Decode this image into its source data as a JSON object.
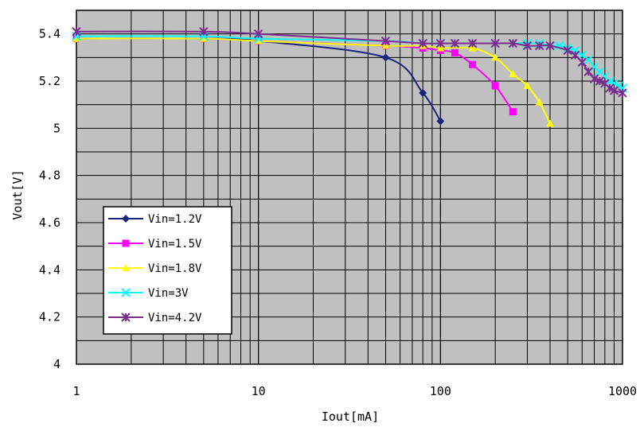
{
  "chart_data": {
    "type": "line",
    "xlabel": "Iout[mA]",
    "ylabel": "Vout[V]",
    "xscale": "log",
    "xlim": [
      1,
      1000
    ],
    "ylim": [
      4,
      5.5
    ],
    "x_ticks": [
      1,
      10,
      100,
      1000
    ],
    "x_tick_labels": [
      "1",
      "10",
      "100",
      "1000"
    ],
    "y_ticks": [
      4,
      4.2,
      4.4,
      4.6,
      4.8,
      5,
      5.2,
      5.4
    ],
    "y_tick_labels": [
      "4",
      "4.2",
      "4.4",
      "4.6",
      "4.8",
      "5",
      "5.2",
      "5.4"
    ],
    "grid": true,
    "plot_background": "#c0c0c0",
    "legend_position": "lower-left",
    "series": [
      {
        "name": "Vin=1.2V",
        "color": "#1a237e",
        "marker": "diamond",
        "x": [
          1,
          5,
          10,
          50,
          80,
          100
        ],
        "y": [
          5.38,
          5.38,
          5.37,
          5.3,
          5.15,
          5.03
        ]
      },
      {
        "name": "Vin=1.5V",
        "color": "#ff00ff",
        "marker": "square",
        "x": [
          1,
          5,
          10,
          50,
          80,
          100,
          120,
          150,
          200,
          250
        ],
        "y": [
          5.38,
          5.38,
          5.37,
          5.35,
          5.34,
          5.33,
          5.32,
          5.27,
          5.18,
          5.07
        ]
      },
      {
        "name": "Vin=1.8V",
        "color": "#ffff00",
        "marker": "triangle",
        "x": [
          1,
          5,
          10,
          50,
          80,
          100,
          150,
          200,
          250,
          300,
          350,
          400
        ],
        "y": [
          5.38,
          5.38,
          5.37,
          5.35,
          5.35,
          5.34,
          5.34,
          5.3,
          5.23,
          5.18,
          5.11,
          5.02
        ]
      },
      {
        "name": "Vin=3V",
        "color": "#00ffff",
        "marker": "x",
        "x": [
          1,
          5,
          10,
          50,
          80,
          100,
          120,
          150,
          200,
          250,
          300,
          350,
          400,
          450,
          500,
          550,
          600,
          650,
          700,
          750,
          800,
          850,
          900,
          950,
          1000
        ],
        "y": [
          5.39,
          5.39,
          5.38,
          5.37,
          5.36,
          5.36,
          5.36,
          5.36,
          5.36,
          5.36,
          5.36,
          5.36,
          5.35,
          5.35,
          5.34,
          5.33,
          5.31,
          5.29,
          5.26,
          5.24,
          5.22,
          5.2,
          5.19,
          5.18,
          5.17
        ]
      },
      {
        "name": "Vin=4.2V",
        "color": "#7b2d8e",
        "marker": "asterisk",
        "x": [
          1,
          5,
          10,
          50,
          80,
          100,
          120,
          150,
          200,
          250,
          300,
          350,
          400,
          500,
          550,
          600,
          650,
          700,
          750,
          800,
          850,
          900,
          1000
        ],
        "y": [
          5.41,
          5.41,
          5.4,
          5.37,
          5.36,
          5.36,
          5.36,
          5.36,
          5.36,
          5.36,
          5.35,
          5.35,
          5.35,
          5.33,
          5.31,
          5.28,
          5.24,
          5.21,
          5.2,
          5.19,
          5.17,
          5.16,
          5.15
        ]
      }
    ]
  }
}
